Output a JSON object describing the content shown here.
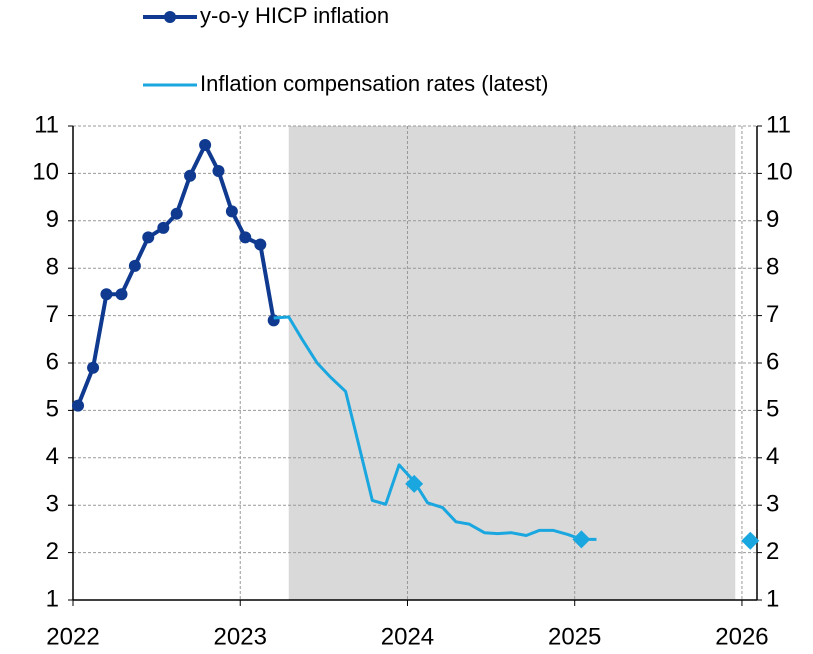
{
  "chart_data": {
    "type": "line",
    "xlim": [
      2022,
      2026.09
    ],
    "xticks": [
      2022,
      2023,
      2024,
      2025,
      2026
    ],
    "ylim": [
      1,
      11
    ],
    "yticks": [
      1,
      2,
      3,
      4,
      5,
      6,
      7,
      8,
      9,
      10,
      11
    ],
    "y2lim": [
      1,
      11
    ],
    "y2ticks": [
      1,
      2,
      3,
      4,
      5,
      6,
      7,
      8,
      9,
      10,
      11
    ],
    "grid": true,
    "shaded_region": {
      "x": [
        2023.29,
        2025.96
      ],
      "color": "#d9d9d9"
    },
    "series": [
      {
        "name": "y-o-y HICP inflation",
        "color": "#0f3a8f",
        "marker": "circle",
        "x": [
          2022.03,
          2022.12,
          2022.2,
          2022.29,
          2022.37,
          2022.45,
          2022.54,
          2022.62,
          2022.7,
          2022.79,
          2022.87,
          2022.95,
          2023.03,
          2023.12,
          2023.2
        ],
        "values": [
          5.1,
          5.9,
          7.45,
          7.45,
          8.05,
          8.65,
          8.85,
          9.15,
          9.95,
          10.6,
          10.05,
          9.2,
          8.65,
          8.5,
          6.9
        ]
      },
      {
        "name": "Inflation compensation rates (latest)",
        "color": "#1aa7e0",
        "marker": "none",
        "x": [
          2023.2,
          2023.29,
          2023.37,
          2023.46,
          2023.54,
          2023.63,
          2023.7,
          2023.79,
          2023.87,
          2023.95,
          2024.04,
          2024.12,
          2024.21,
          2024.29,
          2024.37,
          2024.46,
          2024.54,
          2024.62,
          2024.71,
          2024.79,
          2024.87,
          2024.96,
          2025.04,
          2025.13
        ],
        "values": [
          6.95,
          6.97,
          6.5,
          6.0,
          5.7,
          5.4,
          4.4,
          3.1,
          3.02,
          3.85,
          3.5,
          3.05,
          2.95,
          2.65,
          2.6,
          2.42,
          2.4,
          2.42,
          2.36,
          2.47,
          2.47,
          2.38,
          2.28,
          2.28
        ]
      },
      {
        "color": "#1aa7e0",
        "marker": "diamond",
        "line": false,
        "x": [
          2024.04,
          2025.04,
          2026.05
        ],
        "values": [
          3.45,
          2.28,
          2.25
        ]
      }
    ]
  }
}
